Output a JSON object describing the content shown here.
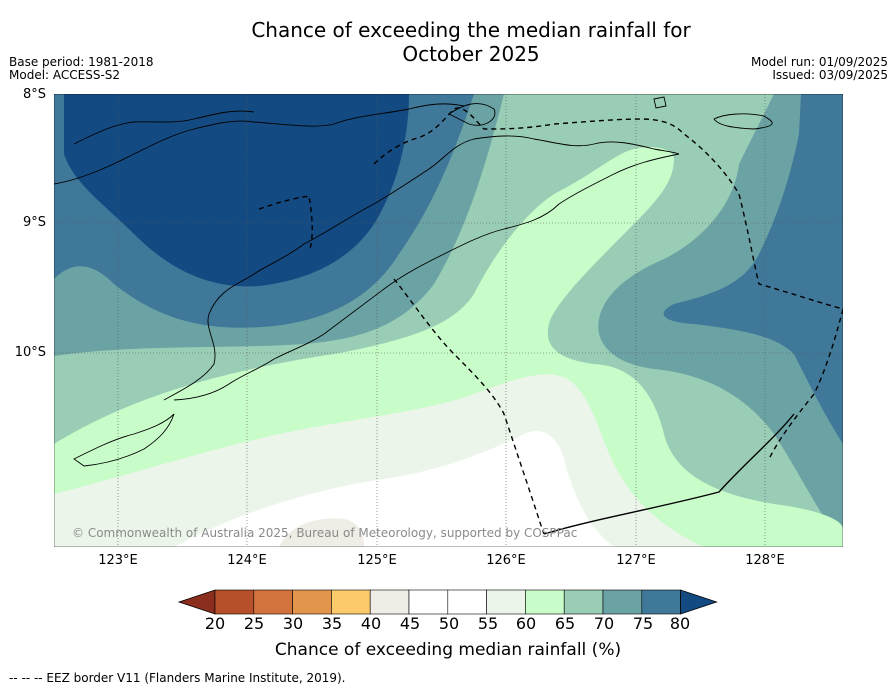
{
  "title_line1": "Chance of exceeding the median rainfall for",
  "title_line2": "October 2025",
  "meta_left": [
    "Base period: 1981-2018",
    "Model: ACCESS-S2"
  ],
  "meta_right": [
    "Model run: 01/09/2025",
    "Issued: 03/09/2025"
  ],
  "lat_labels": [
    "8°S",
    "9°S",
    "10°S"
  ],
  "lon_labels": [
    "123°E",
    "124°E",
    "125°E",
    "126°E",
    "127°E",
    "128°E"
  ],
  "copyright": "© Commonwealth of Australia 2025, Bureau of Meteorology, supported by COSPPac",
  "colorbar": {
    "title": "Chance of exceeding median rainfall (%)",
    "ticks": [
      "20",
      "25",
      "30",
      "35",
      "40",
      "45",
      "50",
      "55",
      "60",
      "65",
      "70",
      "75",
      "80"
    ],
    "colors": [
      "#8b2e1e",
      "#b5502b",
      "#d2723d",
      "#e2964c",
      "#fdca6b",
      "#f0ede7",
      "#ffffff",
      "#ffffff",
      "#ecf5ea",
      "#c8fcc9",
      "#9acdb5",
      "#6ba3a4",
      "#3f7899",
      "#134a82"
    ]
  },
  "footnote": "--  --  -- EEZ border V11 (Flanders Marine Institute, 2019)."
}
